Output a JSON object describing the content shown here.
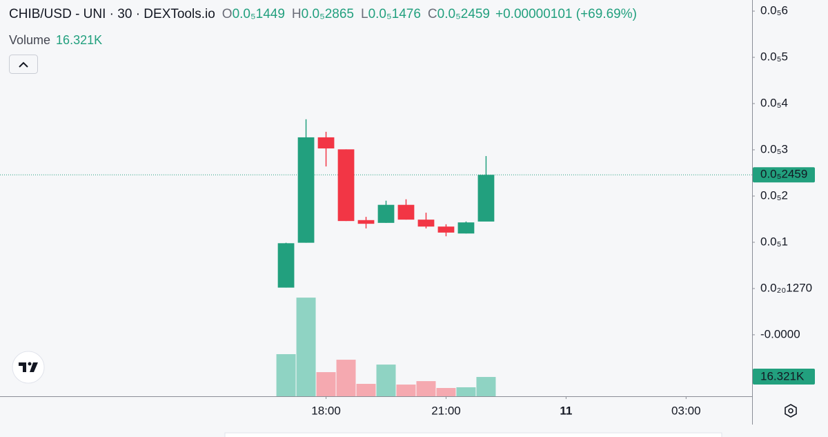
{
  "chart_data": {
    "type": "candlestick",
    "title": "CHIB/USD - UNI · 30 · DEXTools.io",
    "ohlc_labels": [
      {
        "key": "O",
        "value": "0.0₅1449"
      },
      {
        "key": "H",
        "value": "0.0₅2865"
      },
      {
        "key": "L",
        "value": "0.0₅1476"
      },
      {
        "key": "C",
        "value": "0.0₅2459"
      }
    ],
    "change": "+0.00000101 (+69.69%)",
    "volume_title": "Volume",
    "volume_value": "16.321K",
    "last_price_label": "0.0₅2459",
    "x": [
      17,
      17.5,
      18,
      18.5,
      19,
      19.5,
      20,
      20.5,
      21,
      21.5,
      22
    ],
    "open": [
      2e-08,
      9.9e-07,
      3.27e-06,
      3.01e-06,
      1.48e-06,
      1.42e-06,
      1.81e-06,
      1.49e-06,
      1.34e-06,
      1.19e-06,
      1.449e-06
    ],
    "high": [
      9.9e-07,
      3.66e-06,
      3.39e-06,
      3.01e-06,
      1.55e-06,
      1.9e-06,
      1.93e-06,
      1.64e-06,
      1.39e-06,
      1.45e-06,
      2.865e-06
    ],
    "low": [
      2e-08,
      9.9e-07,
      2.64e-06,
      1.46e-06,
      1.3e-06,
      1.42e-06,
      1.49e-06,
      1.3e-06,
      1.13e-06,
      1.19e-06,
      1.476e-06
    ],
    "close": [
      9.8e-07,
      3.27e-06,
      3.03e-06,
      1.46e-06,
      1.4e-06,
      1.81e-06,
      1.49e-06,
      1.34e-06,
      1.21e-06,
      1.43e-06,
      2.459e-06
    ],
    "volume": [
      35600,
      83400,
      20400,
      30900,
      10500,
      26800,
      9900,
      12800,
      7000,
      7600,
      16321
    ],
    "up_color": "#22a07e",
    "down_color": "#f23645",
    "volume_up_color": "#8fd3c3",
    "volume_down_color": "#f5a9b0",
    "xlim": [
      9.85,
      28.65
    ],
    "xticks": [
      {
        "value": 18,
        "label": "18:00"
      },
      {
        "value": 21,
        "label": "21:00"
      },
      {
        "value": 24,
        "label": "11"
      },
      {
        "value": 27,
        "label": "03:00"
      }
    ],
    "ylim": [
      -2.33e-06,
      6.24e-06
    ],
    "yticks": [
      {
        "value": 6e-06,
        "label": "0.0₅6"
      },
      {
        "value": 5e-06,
        "label": "0.0₅5"
      },
      {
        "value": 4e-06,
        "label": "0.0₅4"
      },
      {
        "value": 3e-06,
        "label": "0.0₅3"
      },
      {
        "value": 2e-06,
        "label": "0.0₅2"
      },
      {
        "value": 1e-06,
        "label": "0.0₅1"
      },
      {
        "value": 1.27e-21,
        "label": "0.0₂₀1270"
      },
      {
        "value": -1e-06,
        "label": "-0.0000"
      }
    ],
    "y2lim": [
      0,
      335000
    ]
  }
}
